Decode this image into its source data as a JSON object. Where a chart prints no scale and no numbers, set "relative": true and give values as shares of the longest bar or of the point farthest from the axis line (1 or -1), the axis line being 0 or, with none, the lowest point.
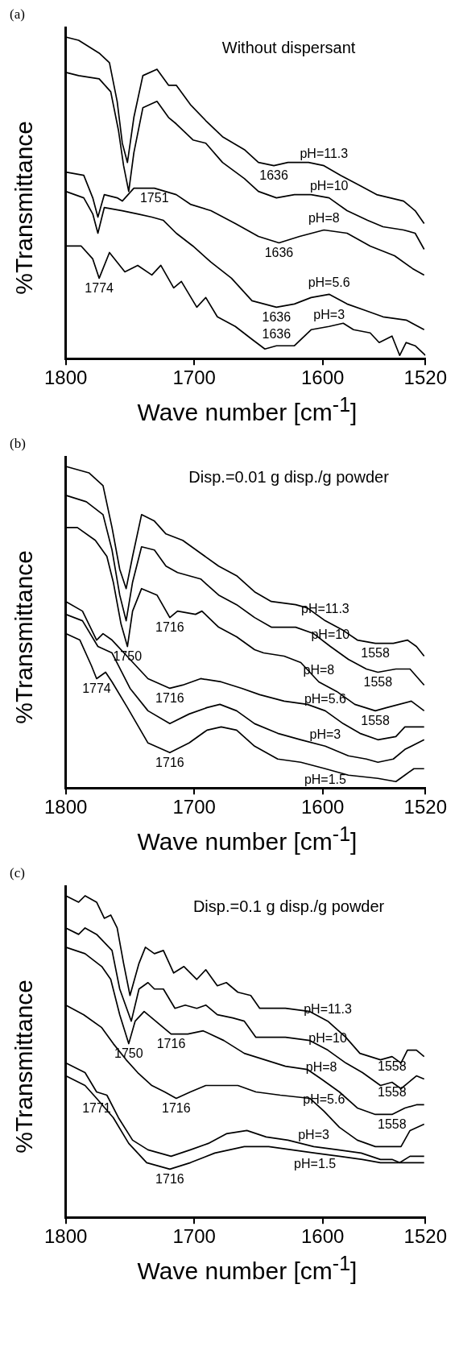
{
  "chart_data": [
    {
      "type": "line",
      "title": "(a)",
      "subtitle": "Without dispersant",
      "xlabel": "Wave number [cm$^{-1}$]",
      "ylabel": "%Transmittance",
      "relative": true,
      "xlim": [
        1800,
        1520
      ],
      "xticks": [
        1800,
        1700,
        1600,
        1520
      ],
      "tick_labels": "x",
      "legend": false,
      "grid": false,
      "annotations": [
        {
          "text": "1636",
          "x": 1638,
          "y": 0.6
        },
        {
          "text": "1751",
          "x": 1731,
          "y": 0.53
        },
        {
          "text": "1636",
          "x": 1634,
          "y": 0.36
        },
        {
          "text": "1774",
          "x": 1774,
          "y": 0.25
        },
        {
          "text": "1636",
          "x": 1636,
          "y": 0.16
        },
        {
          "text": "1636",
          "x": 1636,
          "y": 0.04
        }
      ],
      "series": [
        {
          "name": "pH=11.3",
          "color": "#000000",
          "x": [
            1800,
            1790,
            1774,
            1766,
            1760,
            1756,
            1752,
            1747,
            1740,
            1729,
            1720,
            1714,
            1703,
            1691,
            1678,
            1661,
            1650,
            1638,
            1627,
            1611,
            1599,
            1586,
            1572,
            1558,
            1537,
            1528,
            1521
          ],
          "values": [
            1.0,
            0.99,
            0.95,
            0.92,
            0.8,
            0.67,
            0.61,
            0.75,
            0.88,
            0.9,
            0.85,
            0.85,
            0.79,
            0.74,
            0.69,
            0.65,
            0.61,
            0.6,
            0.61,
            0.61,
            0.6,
            0.57,
            0.54,
            0.51,
            0.49,
            0.46,
            0.42
          ]
        },
        {
          "name": "pH=10",
          "color": "#000000",
          "x": [
            1800,
            1790,
            1774,
            1765,
            1759,
            1755,
            1751,
            1747,
            1740,
            1729,
            1720,
            1714,
            1701,
            1691,
            1678,
            1661,
            1650,
            1636,
            1622,
            1609,
            1595,
            1581,
            1565,
            1553,
            1537,
            1528,
            1521
          ],
          "values": [
            0.89,
            0.88,
            0.87,
            0.83,
            0.71,
            0.6,
            0.52,
            0.64,
            0.78,
            0.8,
            0.75,
            0.73,
            0.68,
            0.67,
            0.61,
            0.56,
            0.52,
            0.5,
            0.51,
            0.51,
            0.5,
            0.46,
            0.43,
            0.41,
            0.4,
            0.39,
            0.34
          ]
        },
        {
          "name": "pH=8",
          "color": "#000000",
          "x": [
            1800,
            1786,
            1779,
            1775,
            1770,
            1760,
            1756,
            1747,
            1731,
            1714,
            1703,
            1687,
            1668,
            1650,
            1634,
            1618,
            1599,
            1581,
            1563,
            1544,
            1530,
            1521
          ],
          "values": [
            0.58,
            0.57,
            0.5,
            0.44,
            0.51,
            0.5,
            0.49,
            0.53,
            0.53,
            0.51,
            0.48,
            0.46,
            0.42,
            0.38,
            0.36,
            0.38,
            0.4,
            0.39,
            0.35,
            0.32,
            0.28,
            0.26
          ]
        },
        {
          "name": "pH=5.6",
          "color": "#000000",
          "x": [
            1800,
            1786,
            1779,
            1775,
            1770,
            1756,
            1744,
            1733,
            1724,
            1714,
            1701,
            1687,
            1671,
            1655,
            1636,
            1622,
            1609,
            1595,
            1581,
            1567,
            1553,
            1535,
            1521
          ],
          "values": [
            0.52,
            0.5,
            0.45,
            0.39,
            0.47,
            0.46,
            0.45,
            0.44,
            0.43,
            0.39,
            0.35,
            0.3,
            0.25,
            0.18,
            0.16,
            0.17,
            0.19,
            0.2,
            0.17,
            0.15,
            0.13,
            0.12,
            0.09
          ]
        },
        {
          "name": "pH=3",
          "color": "#000000",
          "x": [
            1800,
            1788,
            1779,
            1774,
            1766,
            1754,
            1744,
            1733,
            1726,
            1716,
            1710,
            1698,
            1691,
            1682,
            1668,
            1655,
            1645,
            1636,
            1622,
            1609,
            1595,
            1584,
            1576,
            1563,
            1556,
            1546,
            1540,
            1535,
            1528,
            1520
          ],
          "values": [
            0.35,
            0.35,
            0.31,
            0.25,
            0.33,
            0.27,
            0.29,
            0.26,
            0.29,
            0.22,
            0.24,
            0.16,
            0.19,
            0.13,
            0.1,
            0.06,
            0.03,
            0.04,
            0.04,
            0.09,
            0.1,
            0.11,
            0.09,
            0.08,
            0.05,
            0.07,
            0.01,
            0.05,
            0.04,
            0.01
          ]
        }
      ]
    },
    {
      "type": "line",
      "title": "(b)",
      "subtitle": "Disp.=0.01 g disp./g powder",
      "xlabel": "Wave number [cm$^{-1}$]",
      "ylabel": "%Transmittance",
      "relative": true,
      "xlim": [
        1800,
        1520
      ],
      "xticks": [
        1800,
        1700,
        1600,
        1520
      ],
      "tick_labels": "x",
      "legend": false,
      "grid": false,
      "annotations": [
        {
          "text": "1716",
          "x": 1719,
          "y": 0.53
        },
        {
          "text": "1750",
          "x": 1752,
          "y": 0.44
        },
        {
          "text": "1774",
          "x": 1776,
          "y": 0.34
        },
        {
          "text": "1716",
          "x": 1719,
          "y": 0.31
        },
        {
          "text": "1716",
          "x": 1719,
          "y": 0.11
        },
        {
          "text": "1558",
          "x": 1559,
          "y": 0.45
        },
        {
          "text": "1558",
          "x": 1557,
          "y": 0.36
        },
        {
          "text": "1558",
          "x": 1559,
          "y": 0.24
        }
      ],
      "series": [
        {
          "name": "pH=11.3",
          "color": "#000000",
          "x": [
            1800,
            1782,
            1771,
            1764,
            1758,
            1753,
            1748,
            1741,
            1731,
            1722,
            1709,
            1695,
            1681,
            1667,
            1653,
            1640,
            1621,
            1612,
            1598,
            1584,
            1573,
            1559,
            1545,
            1534,
            1527,
            1521
          ],
          "values": [
            1.0,
            0.98,
            0.94,
            0.81,
            0.68,
            0.62,
            0.72,
            0.85,
            0.83,
            0.79,
            0.77,
            0.73,
            0.69,
            0.66,
            0.61,
            0.58,
            0.57,
            0.56,
            0.52,
            0.49,
            0.46,
            0.45,
            0.45,
            0.46,
            0.44,
            0.41
          ]
        },
        {
          "name": "pH=10",
          "color": "#000000",
          "x": [
            1800,
            1784,
            1771,
            1764,
            1758,
            1753,
            1748,
            1741,
            1731,
            1722,
            1713,
            1695,
            1681,
            1667,
            1653,
            1640,
            1621,
            1607,
            1594,
            1580,
            1566,
            1557,
            1543,
            1532,
            1521
          ],
          "values": [
            0.91,
            0.89,
            0.85,
            0.74,
            0.6,
            0.52,
            0.64,
            0.75,
            0.74,
            0.69,
            0.67,
            0.65,
            0.6,
            0.57,
            0.53,
            0.5,
            0.5,
            0.48,
            0.44,
            0.4,
            0.37,
            0.36,
            0.37,
            0.37,
            0.32
          ]
        },
        {
          "name": "pH=8",
          "color": "#000000",
          "x": [
            1800,
            1791,
            1777,
            1768,
            1763,
            1757,
            1752,
            1748,
            1741,
            1729,
            1719,
            1713,
            1699,
            1694,
            1681,
            1667,
            1653,
            1646,
            1630,
            1617,
            1603,
            1589,
            1575,
            1559,
            1550,
            1531,
            1521
          ],
          "values": [
            0.81,
            0.81,
            0.77,
            0.72,
            0.64,
            0.51,
            0.44,
            0.55,
            0.62,
            0.6,
            0.53,
            0.55,
            0.54,
            0.55,
            0.5,
            0.47,
            0.43,
            0.42,
            0.41,
            0.39,
            0.33,
            0.3,
            0.26,
            0.24,
            0.25,
            0.27,
            0.24
          ]
        },
        {
          "name": "pH=5.6",
          "color": "#000000",
          "x": [
            1800,
            1787,
            1776,
            1771,
            1764,
            1750,
            1736,
            1719,
            1709,
            1695,
            1679,
            1663,
            1649,
            1630,
            1612,
            1598,
            1584,
            1571,
            1557,
            1543,
            1536,
            1529,
            1521
          ],
          "values": [
            0.58,
            0.55,
            0.46,
            0.48,
            0.46,
            0.4,
            0.34,
            0.31,
            0.32,
            0.34,
            0.33,
            0.31,
            0.29,
            0.27,
            0.26,
            0.24,
            0.2,
            0.17,
            0.15,
            0.16,
            0.19,
            0.19,
            0.19
          ]
        },
        {
          "name": "pH=3",
          "color": "#000000",
          "x": [
            1800,
            1787,
            1775,
            1764,
            1750,
            1736,
            1719,
            1704,
            1690,
            1680,
            1667,
            1653,
            1635,
            1617,
            1598,
            1580,
            1566,
            1557,
            1545,
            1536,
            1521
          ],
          "values": [
            0.54,
            0.52,
            0.44,
            0.42,
            0.31,
            0.24,
            0.2,
            0.23,
            0.25,
            0.26,
            0.24,
            0.2,
            0.17,
            0.15,
            0.13,
            0.1,
            0.09,
            0.08,
            0.09,
            0.12,
            0.15
          ]
        },
        {
          "name": "pH=1.5",
          "color": "#000000",
          "x": [
            1800,
            1789,
            1780,
            1776,
            1769,
            1764,
            1752,
            1736,
            1719,
            1704,
            1690,
            1679,
            1667,
            1653,
            1635,
            1617,
            1598,
            1580,
            1557,
            1543,
            1536,
            1529,
            1521
          ],
          "values": [
            0.48,
            0.46,
            0.38,
            0.34,
            0.36,
            0.33,
            0.25,
            0.14,
            0.11,
            0.14,
            0.18,
            0.19,
            0.18,
            0.13,
            0.09,
            0.08,
            0.06,
            0.04,
            0.03,
            0.02,
            0.04,
            0.06,
            0.06
          ]
        }
      ]
    },
    {
      "type": "line",
      "title": "(c)",
      "subtitle": "Disp.=0.1 g disp./g powder",
      "xlabel": "Wave number [cm$^{-1}$]",
      "ylabel": "%Transmittance",
      "relative": true,
      "xlim": [
        1800,
        1520
      ],
      "xticks": [
        1800,
        1700,
        1600,
        1520
      ],
      "tick_labels": "x",
      "legend": false,
      "grid": false,
      "annotations": [
        {
          "text": "1750",
          "x": 1751,
          "y": 0.54
        },
        {
          "text": "1716",
          "x": 1718,
          "y": 0.57
        },
        {
          "text": "1771",
          "x": 1776,
          "y": 0.37
        },
        {
          "text": "1716",
          "x": 1714,
          "y": 0.37
        },
        {
          "text": "1716",
          "x": 1719,
          "y": 0.15
        },
        {
          "text": "1558",
          "x": 1546,
          "y": 0.5
        },
        {
          "text": "1558",
          "x": 1546,
          "y": 0.42
        },
        {
          "text": "1558",
          "x": 1546,
          "y": 0.32
        }
      ],
      "series": [
        {
          "name": "pH=11.3",
          "color": "#000000",
          "x": [
            1800,
            1790,
            1785,
            1776,
            1770,
            1765,
            1760,
            1755,
            1750,
            1743,
            1738,
            1731,
            1724,
            1716,
            1708,
            1698,
            1691,
            1682,
            1675,
            1666,
            1656,
            1649,
            1640,
            1629,
            1610,
            1596,
            1582,
            1571,
            1555,
            1546,
            1539,
            1534,
            1527,
            1521
          ],
          "values": [
            1.0,
            0.98,
            1.0,
            0.98,
            0.93,
            0.94,
            0.9,
            0.79,
            0.69,
            0.79,
            0.84,
            0.82,
            0.83,
            0.76,
            0.78,
            0.74,
            0.77,
            0.72,
            0.73,
            0.7,
            0.69,
            0.65,
            0.65,
            0.65,
            0.64,
            0.61,
            0.56,
            0.51,
            0.49,
            0.5,
            0.48,
            0.52,
            0.52,
            0.5
          ]
        },
        {
          "name": "pH=10",
          "color": "#000000",
          "x": [
            1800,
            1790,
            1785,
            1776,
            1764,
            1758,
            1749,
            1743,
            1736,
            1731,
            1724,
            1715,
            1707,
            1698,
            1691,
            1682,
            1670,
            1661,
            1652,
            1642,
            1629,
            1610,
            1596,
            1582,
            1569,
            1555,
            1546,
            1539,
            1527,
            1521
          ],
          "values": [
            0.9,
            0.88,
            0.9,
            0.88,
            0.83,
            0.71,
            0.61,
            0.71,
            0.73,
            0.71,
            0.71,
            0.65,
            0.66,
            0.65,
            0.66,
            0.63,
            0.62,
            0.61,
            0.56,
            0.56,
            0.56,
            0.55,
            0.52,
            0.48,
            0.45,
            0.41,
            0.42,
            0.4,
            0.44,
            0.43
          ]
        },
        {
          "name": "pH=8",
          "color": "#000000",
          "x": [
            1800,
            1785,
            1772,
            1765,
            1758,
            1751,
            1746,
            1739,
            1730,
            1718,
            1705,
            1693,
            1677,
            1661,
            1645,
            1629,
            1612,
            1601,
            1587,
            1573,
            1559,
            1546,
            1536,
            1527,
            1521
          ],
          "values": [
            0.84,
            0.82,
            0.78,
            0.74,
            0.63,
            0.54,
            0.61,
            0.64,
            0.61,
            0.57,
            0.57,
            0.58,
            0.55,
            0.51,
            0.49,
            0.47,
            0.46,
            0.43,
            0.39,
            0.34,
            0.32,
            0.32,
            0.34,
            0.35,
            0.35
          ]
        },
        {
          "name": "pH=5.6",
          "color": "#000000",
          "x": [
            1800,
            1786,
            1772,
            1763,
            1753,
            1744,
            1733,
            1723,
            1714,
            1703,
            1691,
            1679,
            1666,
            1652,
            1633,
            1610,
            1599,
            1587,
            1573,
            1559,
            1545,
            1539,
            1532,
            1521
          ],
          "values": [
            0.66,
            0.63,
            0.59,
            0.54,
            0.49,
            0.45,
            0.41,
            0.39,
            0.37,
            0.39,
            0.41,
            0.41,
            0.41,
            0.39,
            0.38,
            0.37,
            0.33,
            0.28,
            0.24,
            0.22,
            0.22,
            0.22,
            0.27,
            0.29
          ]
        },
        {
          "name": "pH=3",
          "color": "#000000",
          "x": [
            1800,
            1785,
            1776,
            1768,
            1759,
            1748,
            1736,
            1718,
            1703,
            1689,
            1675,
            1659,
            1644,
            1627,
            1607,
            1588,
            1570,
            1555,
            1546,
            1540,
            1532,
            1521
          ],
          "values": [
            0.48,
            0.45,
            0.39,
            0.38,
            0.31,
            0.24,
            0.21,
            0.19,
            0.21,
            0.23,
            0.26,
            0.27,
            0.25,
            0.24,
            0.22,
            0.21,
            0.2,
            0.18,
            0.18,
            0.17,
            0.19,
            0.19
          ]
        },
        {
          "name": "pH=1.5",
          "color": "#000000",
          "x": [
            1800,
            1785,
            1776,
            1763,
            1751,
            1737,
            1719,
            1703,
            1684,
            1661,
            1642,
            1624,
            1606,
            1587,
            1569,
            1555,
            1541,
            1521
          ],
          "values": [
            0.44,
            0.41,
            0.37,
            0.31,
            0.23,
            0.17,
            0.15,
            0.17,
            0.2,
            0.22,
            0.22,
            0.21,
            0.2,
            0.19,
            0.18,
            0.17,
            0.17,
            0.17
          ]
        }
      ]
    }
  ]
}
